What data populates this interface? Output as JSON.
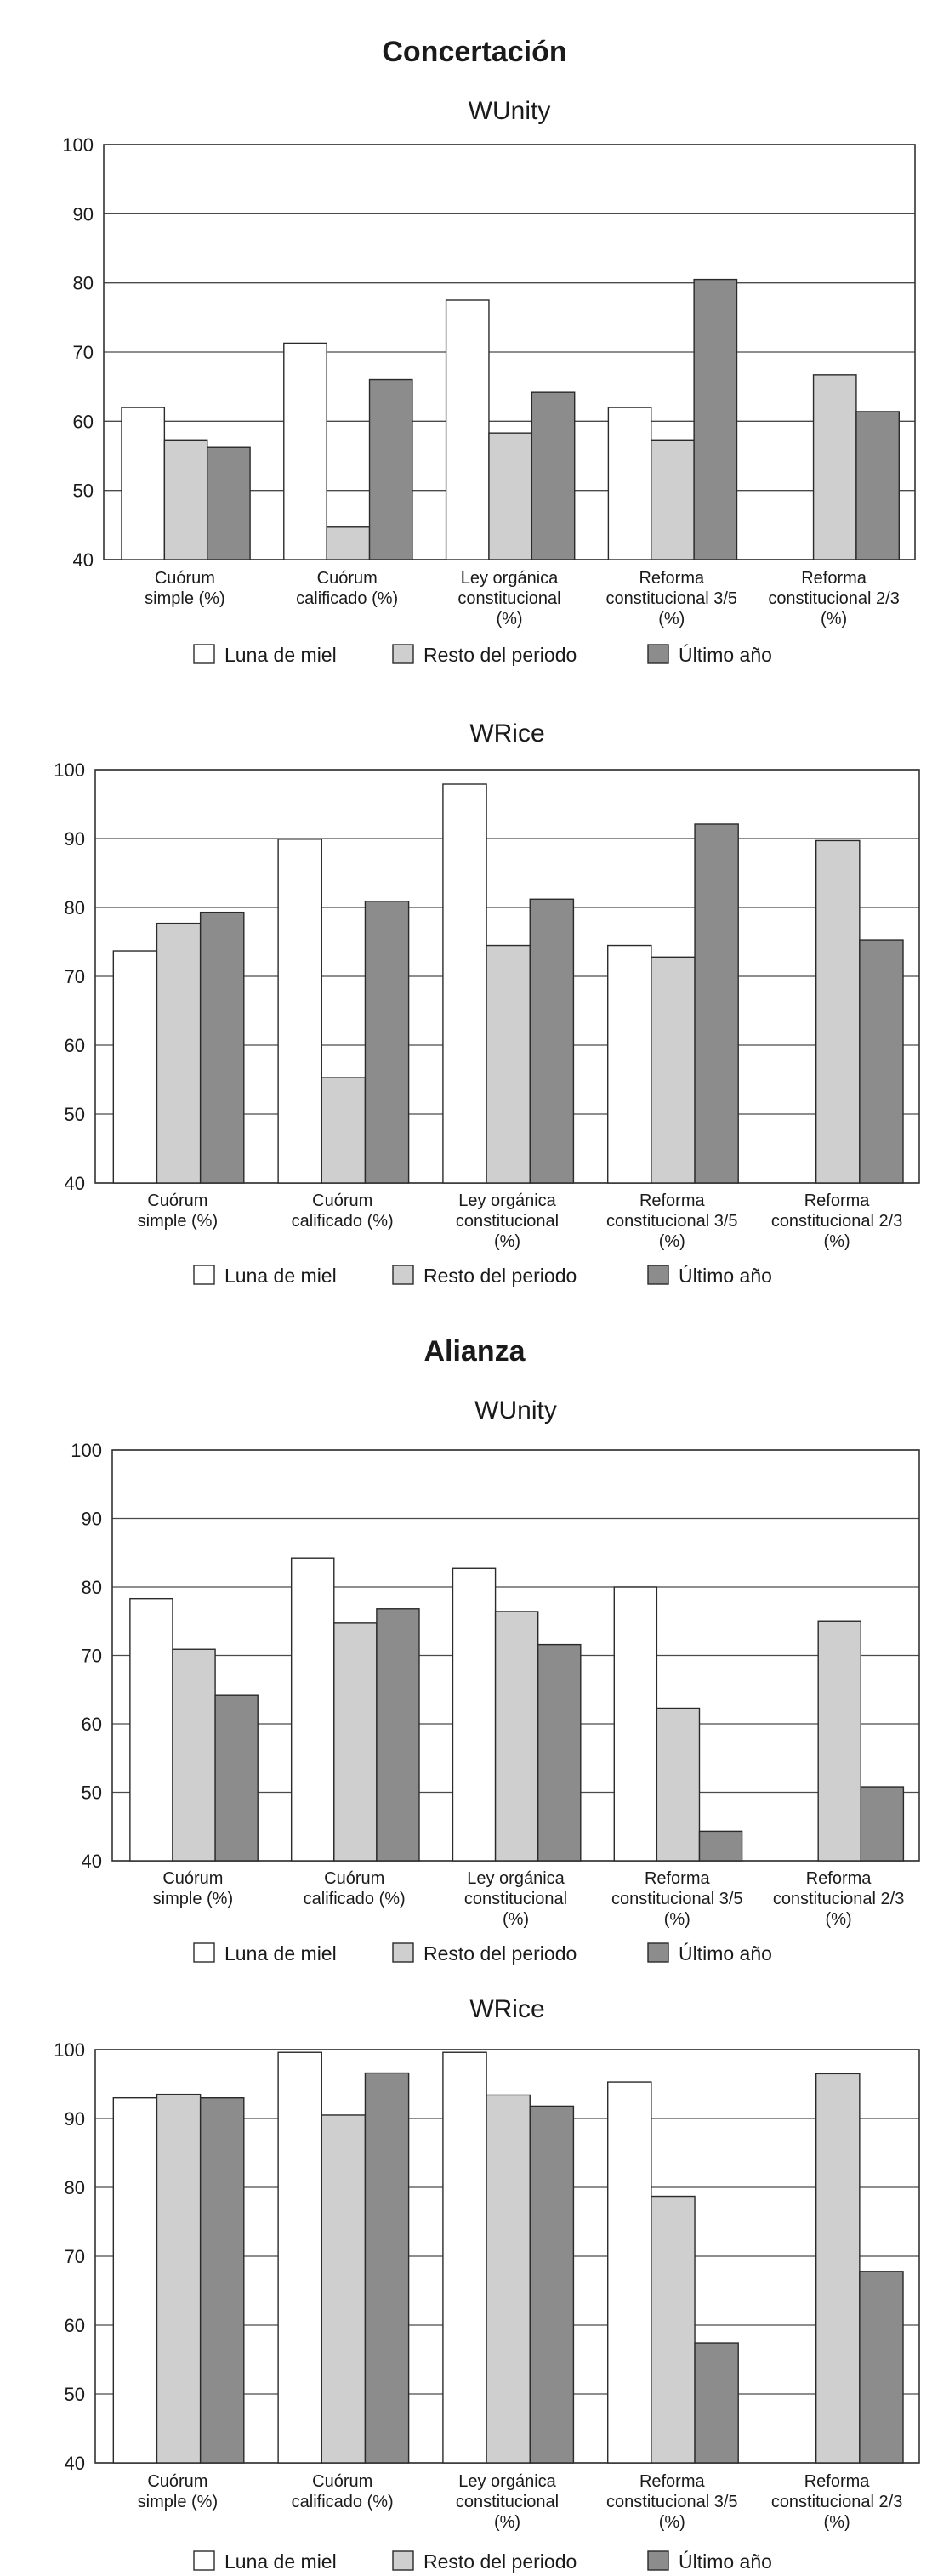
{
  "sections": [
    {
      "title": "Concertación",
      "charts": [
        {
          "title": "WUnity",
          "categories": [
            [
              "Cuórum",
              "simple (%)"
            ],
            [
              "Cuórum",
              "calificado (%)"
            ],
            [
              "Ley orgánica",
              "constitucional",
              "(%)"
            ],
            [
              "Reforma",
              "constitucional 3/5",
              "(%)"
            ],
            [
              "Reforma",
              "constitucional 2/3",
              "(%)"
            ]
          ],
          "series": [
            {
              "name": "Luna de miel",
              "values": [
                62,
                71.3,
                77.5,
                62,
                null
              ]
            },
            {
              "name": "Resto del periodo",
              "values": [
                57.3,
                44.7,
                58.3,
                57.3,
                66.7
              ]
            },
            {
              "name": "Último año",
              "values": [
                56.2,
                66,
                64.2,
                80.5,
                61.4
              ]
            }
          ]
        },
        {
          "title": "WRice",
          "categories": [
            [
              "Cuórum",
              "simple (%)"
            ],
            [
              "Cuórum",
              "calificado (%)"
            ],
            [
              "Ley orgánica",
              "constitucional",
              "(%)"
            ],
            [
              "Reforma",
              "constitucional 3/5",
              "(%)"
            ],
            [
              "Reforma",
              "constitucional 2/3",
              "(%)"
            ]
          ],
          "series": [
            {
              "name": "Luna de miel",
              "values": [
                73.7,
                89.9,
                97.9,
                74.5,
                null
              ]
            },
            {
              "name": "Resto del periodo",
              "values": [
                77.7,
                55.3,
                74.5,
                72.8,
                89.7
              ]
            },
            {
              "name": "Último año",
              "values": [
                79.3,
                80.9,
                81.2,
                92.1,
                75.3
              ]
            }
          ]
        }
      ]
    },
    {
      "title": "Alianza",
      "charts": [
        {
          "title": "WUnity",
          "categories": [
            [
              "Cuórum",
              "simple (%)"
            ],
            [
              "Cuórum",
              "calificado (%)"
            ],
            [
              "Ley orgánica",
              "constitucional",
              "(%)"
            ],
            [
              "Reforma",
              "constitucional 3/5",
              "(%)"
            ],
            [
              "Reforma",
              "constitucional 2/3",
              "(%)"
            ]
          ],
          "series": [
            {
              "name": "Luna de miel",
              "values": [
                78.3,
                84.2,
                82.7,
                80,
                null
              ]
            },
            {
              "name": "Resto del periodo",
              "values": [
                70.9,
                74.8,
                76.4,
                62.3,
                75
              ]
            },
            {
              "name": "Último año",
              "values": [
                64.2,
                76.8,
                71.6,
                44.3,
                50.8
              ]
            }
          ]
        },
        {
          "title": "WRice",
          "categories": [
            [
              "Cuórum",
              "simple (%)"
            ],
            [
              "Cuórum",
              "calificado (%)"
            ],
            [
              "Ley orgánica",
              "constitucional",
              "(%)"
            ],
            [
              "Reforma",
              "constitucional 3/5",
              "(%)"
            ],
            [
              "Reforma",
              "constitucional 2/3",
              "(%)"
            ]
          ],
          "series": [
            {
              "name": "Luna de miel",
              "values": [
                93,
                99.6,
                99.6,
                95.3,
                null
              ]
            },
            {
              "name": "Resto del periodo",
              "values": [
                93.5,
                90.5,
                93.4,
                78.7,
                96.5
              ]
            },
            {
              "name": "Último año",
              "values": [
                93,
                96.6,
                91.8,
                57.4,
                67.8
              ]
            }
          ]
        }
      ]
    }
  ],
  "axis": {
    "ymin": 40,
    "ymax": 100,
    "ticks": [
      40,
      50,
      60,
      70,
      80,
      90,
      100
    ]
  },
  "legend": [
    {
      "label": "Luna de miel",
      "color": "#ffffff"
    },
    {
      "label": "Resto del periodo",
      "color": "#cfcfcf"
    },
    {
      "label": "Último año",
      "color": "#8c8c8c"
    }
  ],
  "chart_data": [
    {
      "type": "bar",
      "title": "Concertación — WUnity",
      "categories": [
        "Cuórum simple (%)",
        "Cuórum calificado (%)",
        "Ley orgánica constitucional (%)",
        "Reforma constitucional 3/5 (%)",
        "Reforma constitucional 2/3 (%)"
      ],
      "series": [
        {
          "name": "Luna de miel",
          "values": [
            62,
            71.3,
            77.5,
            62,
            null
          ]
        },
        {
          "name": "Resto del periodo",
          "values": [
            57.3,
            44.7,
            58.3,
            57.3,
            66.7
          ]
        },
        {
          "name": "Último año",
          "values": [
            56.2,
            66,
            64.2,
            80.5,
            61.4
          ]
        }
      ],
      "ylim": [
        40,
        100
      ]
    },
    {
      "type": "bar",
      "title": "Concertación — WRice",
      "categories": [
        "Cuórum simple (%)",
        "Cuórum calificado (%)",
        "Ley orgánica constitucional (%)",
        "Reforma constitucional 3/5 (%)",
        "Reforma constitucional 2/3 (%)"
      ],
      "series": [
        {
          "name": "Luna de miel",
          "values": [
            73.7,
            89.9,
            97.9,
            74.5,
            null
          ]
        },
        {
          "name": "Resto del periodo",
          "values": [
            77.7,
            55.3,
            74.5,
            72.8,
            89.7
          ]
        },
        {
          "name": "Último año",
          "values": [
            79.3,
            80.9,
            81.2,
            92.1,
            75.3
          ]
        }
      ],
      "ylim": [
        40,
        100
      ]
    },
    {
      "type": "bar",
      "title": "Alianza — WUnity",
      "categories": [
        "Cuórum simple (%)",
        "Cuórum calificado (%)",
        "Ley orgánica constitucional (%)",
        "Reforma constitucional 3/5 (%)",
        "Reforma constitucional 2/3 (%)"
      ],
      "series": [
        {
          "name": "Luna de miel",
          "values": [
            78.3,
            84.2,
            82.7,
            80,
            null
          ]
        },
        {
          "name": "Resto del periodo",
          "values": [
            70.9,
            74.8,
            76.4,
            62.3,
            75
          ]
        },
        {
          "name": "Último año",
          "values": [
            64.2,
            76.8,
            71.6,
            44.3,
            50.8
          ]
        }
      ],
      "ylim": [
        40,
        100
      ]
    },
    {
      "type": "bar",
      "title": "Alianza — WRice",
      "categories": [
        "Cuórum simple (%)",
        "Cuórum calificado (%)",
        "Ley orgánica constitucional (%)",
        "Reforma constitucional 3/5 (%)",
        "Reforma constitucional 2/3 (%)"
      ],
      "series": [
        {
          "name": "Luna de miel",
          "values": [
            93,
            99.6,
            99.6,
            95.3,
            null
          ]
        },
        {
          "name": "Resto del periodo",
          "values": [
            93.5,
            90.5,
            93.4,
            78.7,
            96.5
          ]
        },
        {
          "name": "Último año",
          "values": [
            93,
            96.6,
            91.8,
            57.4,
            67.8
          ]
        }
      ],
      "ylim": [
        40,
        100
      ]
    }
  ]
}
